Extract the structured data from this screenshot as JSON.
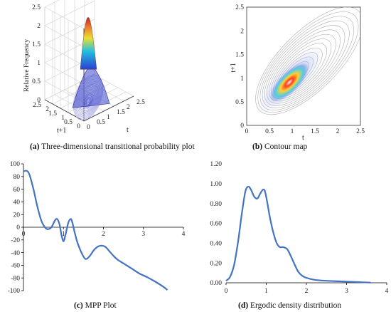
{
  "colors": {
    "curve": "#4472c4",
    "axis": "#000000",
    "tick_text": "#222222"
  },
  "captions": {
    "a": {
      "letter": "(a)",
      "text": " Three-dimensional transitional probability plot"
    },
    "b": {
      "letter": "(b)",
      "text": " Contour map"
    },
    "c": {
      "letter": "(c)",
      "text": " MPP Plot"
    },
    "d": {
      "letter": "(d)",
      "text": " Ergodic density distribution"
    }
  },
  "chart_data": [
    {
      "panel": "a",
      "type": "surface3d",
      "zlabel": "Relative Frequency",
      "xlabel": "t",
      "ylabel": "t+1",
      "zticks": [
        "0",
        "0.5",
        "1",
        "1.5",
        "2",
        "2.5"
      ],
      "xticks": [
        "0",
        "0.5",
        "1",
        "1.5",
        "2",
        "2.5"
      ],
      "yticks": [
        "0",
        "0.5",
        "1",
        "1.5",
        "2",
        "2.5"
      ],
      "peak": {
        "t": 1.0,
        "t1": 1.0,
        "z": 2.3
      },
      "grid": true
    },
    {
      "panel": "b",
      "type": "contour",
      "xlabel": "t",
      "ylabel": "t+1",
      "xlim": [
        0,
        2.5
      ],
      "ylim": [
        0,
        2.5
      ],
      "xticks": [
        "0",
        "0.5",
        "1",
        "1.5",
        "2",
        "2.5"
      ],
      "yticks": [
        "0",
        "0.5",
        "1",
        "1.5",
        "2",
        "2.5"
      ],
      "peak": {
        "t": 1.0,
        "t1": 1.0
      }
    },
    {
      "panel": "c",
      "type": "line",
      "xlim": [
        0,
        4
      ],
      "ylim": [
        -100,
        100
      ],
      "xticks": [
        "0",
        "1",
        "2",
        "3",
        "4"
      ],
      "yticks": [
        "100",
        "80",
        "60",
        "40",
        "20",
        "0",
        "-20",
        "-40",
        "-60",
        "-80",
        "-100"
      ],
      "series": [
        {
          "x": [
            0,
            0.08,
            0.15,
            0.25,
            0.35,
            0.45,
            0.55,
            0.62,
            0.7,
            0.78,
            0.84,
            0.9,
            0.95,
            1.0,
            1.05,
            1.12,
            1.18,
            1.22,
            1.28,
            1.35,
            1.45,
            1.55,
            1.65,
            1.75,
            1.85,
            1.95,
            2.05,
            2.15,
            2.25,
            2.35,
            2.5,
            2.7,
            2.9,
            3.1,
            3.3,
            3.5,
            3.6
          ],
          "y": [
            88,
            89,
            83,
            60,
            32,
            10,
            -1,
            -3,
            0,
            10,
            13,
            5,
            -12,
            -22,
            -12,
            7,
            13,
            8,
            -8,
            -24,
            -40,
            -50,
            -46,
            -37,
            -31,
            -29,
            -31,
            -38,
            -45,
            -51,
            -57,
            -65,
            -73,
            -79,
            -86,
            -94,
            -99
          ]
        }
      ],
      "grid": false
    },
    {
      "panel": "d",
      "type": "line",
      "xlim": [
        0,
        4
      ],
      "ylim": [
        0,
        1.2
      ],
      "xticks": [
        "0",
        "1",
        "2",
        "3",
        "4"
      ],
      "yticks": [
        "1.20",
        "1.00",
        "0.80",
        "0.60",
        "0.40",
        "0.20",
        "0.00"
      ],
      "series": [
        {
          "x": [
            0,
            0.1,
            0.2,
            0.3,
            0.4,
            0.48,
            0.55,
            0.62,
            0.7,
            0.78,
            0.85,
            0.92,
            0.97,
            1.03,
            1.1,
            1.18,
            1.26,
            1.34,
            1.42,
            1.52,
            1.6,
            1.7,
            1.8,
            1.9,
            2.0,
            2.2,
            2.5,
            2.8,
            3.1,
            3.4,
            3.6
          ],
          "y": [
            0.02,
            0.06,
            0.18,
            0.42,
            0.72,
            0.92,
            0.97,
            0.94,
            0.87,
            0.85,
            0.9,
            0.94,
            0.92,
            0.8,
            0.64,
            0.5,
            0.4,
            0.36,
            0.36,
            0.34,
            0.28,
            0.19,
            0.11,
            0.07,
            0.05,
            0.03,
            0.02,
            0.015,
            0.01,
            0.005,
            0.002
          ]
        }
      ],
      "grid": false
    }
  ]
}
